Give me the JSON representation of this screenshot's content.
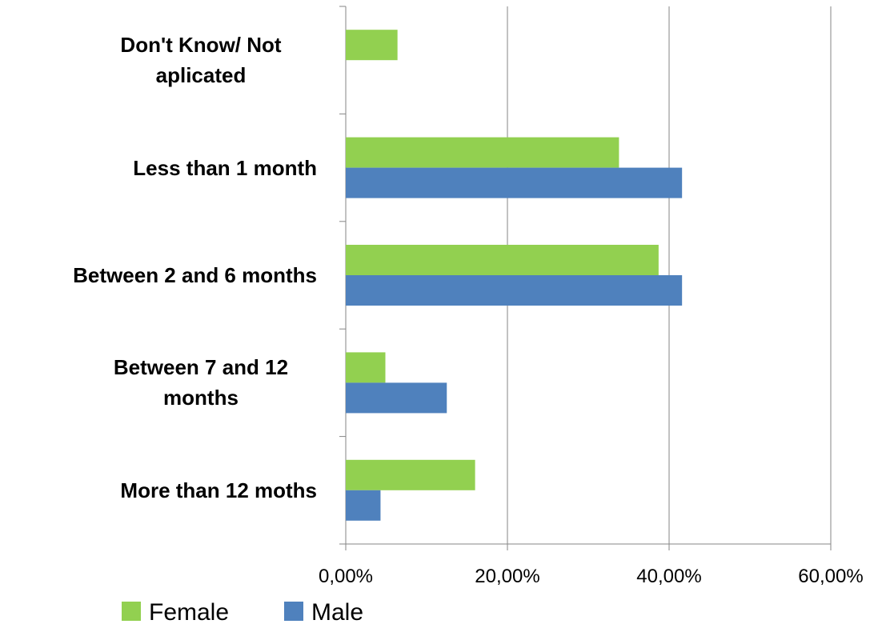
{
  "chart_data": {
    "type": "hbar",
    "categories": [
      "Don't Know/ Not aplicated",
      "Less than 1 month",
      "Between 2 and 6 months",
      "Between 7 and 12 months",
      "More than 12 moths"
    ],
    "series": [
      {
        "name": "Female",
        "color": "#92d050",
        "values": [
          6.4,
          33.8,
          38.7,
          4.9,
          16.0
        ]
      },
      {
        "name": "Male",
        "color": "#4f81bd",
        "values": [
          0,
          41.6,
          41.6,
          12.5,
          4.3
        ]
      }
    ],
    "xlim": [
      0,
      60
    ],
    "xticks": [
      {
        "value": 0,
        "label": "0,00%"
      },
      {
        "value": 20,
        "label": "20,00%"
      },
      {
        "value": 40,
        "label": "40,00%"
      },
      {
        "value": 60,
        "label": "60,00%"
      }
    ],
    "grid": true,
    "legend": "bottom"
  }
}
